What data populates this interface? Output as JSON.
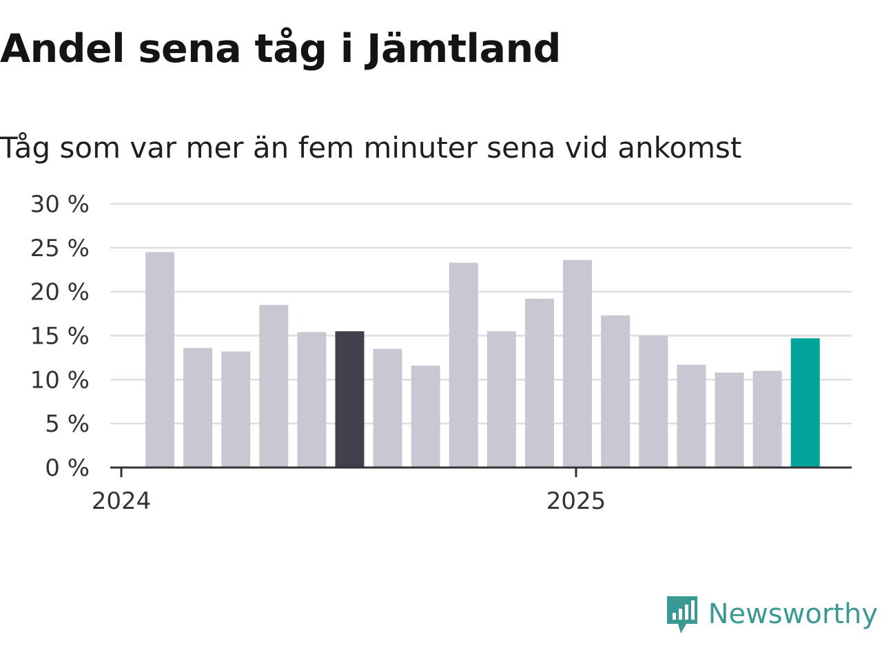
{
  "header": {
    "title": "Andel sena tåg i Jämtland",
    "subtitle": "Tåg som var mer än fem minuter sena vid ankomst"
  },
  "brand": {
    "name": "Newsworthy",
    "icon": "newsworthy-logo-icon",
    "color": "#3a9a93"
  },
  "colors": {
    "default_bar": "#c8c7d2",
    "highlight_bar": "#41404d",
    "latest_bar": "#00a49b",
    "grid": "#dddddd",
    "axis": "#333333"
  },
  "chart_data": {
    "type": "bar",
    "title": "Andel sena tåg i Jämtland",
    "subtitle": "Tåg som var mer än fem minuter sena vid ankomst",
    "xlabel": "",
    "ylabel": "",
    "ylim": [
      0,
      30
    ],
    "yticks": [
      0,
      5,
      10,
      15,
      20,
      25,
      30
    ],
    "ytick_labels": [
      "0 %",
      "5 %",
      "10 %",
      "15 %",
      "20 %",
      "25 %",
      "30 %"
    ],
    "xtick_labels": [
      "2024",
      "2025"
    ],
    "xtick_positions": [
      0,
      12
    ],
    "values": [
      24.5,
      13.6,
      13.2,
      18.5,
      15.4,
      15.5,
      13.5,
      11.6,
      23.3,
      15.5,
      19.2,
      23.6,
      17.3,
      15.0,
      11.7,
      10.8,
      11.0,
      14.7
    ],
    "highlight_index": 5,
    "latest_index": 17,
    "grid": true
  }
}
